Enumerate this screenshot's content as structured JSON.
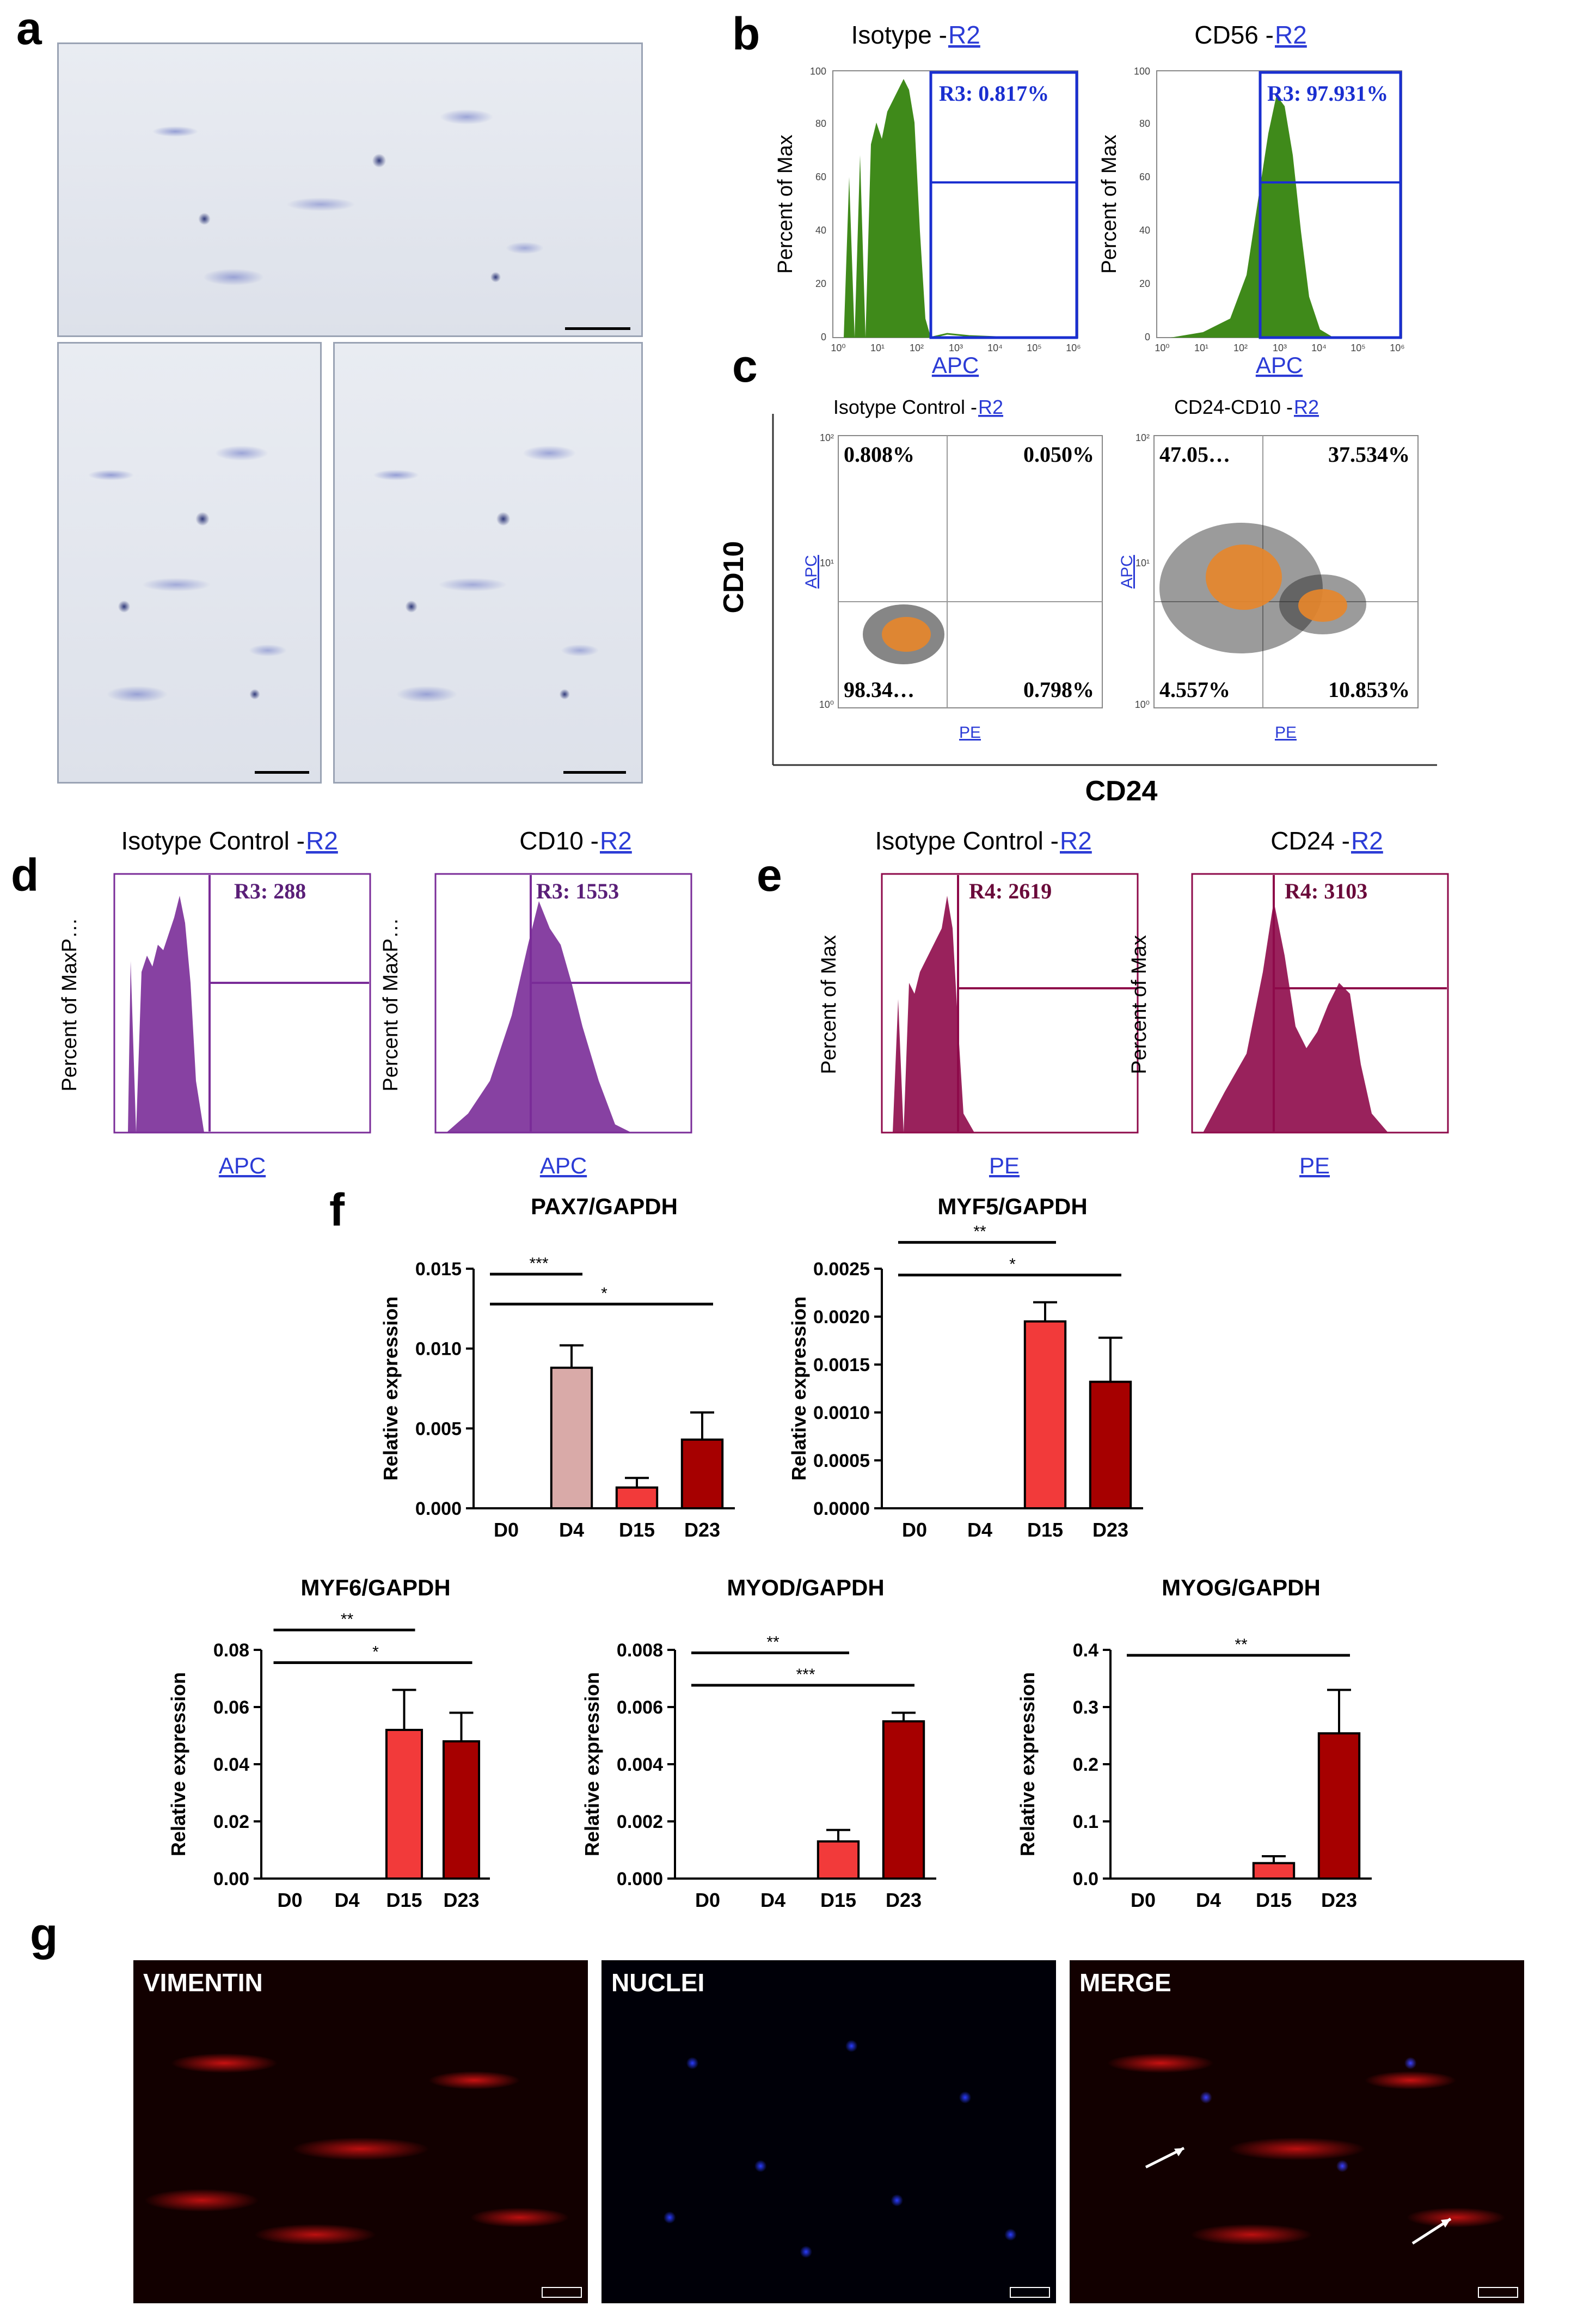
{
  "panel_labels": {
    "a": "a",
    "b": "b",
    "c": "c",
    "d": "d",
    "e": "e",
    "f": "f",
    "g": "g"
  },
  "colors": {
    "green": "#3f8a1a",
    "blue_gate": "#1a2fd0",
    "purple": "#7a2c98",
    "maroon": "#8e0a4a",
    "bar_pink": "#d9aaa8",
    "bar_red": "#f23a3a",
    "bar_darkred": "#a60000"
  },
  "panel_b": {
    "plots": [
      {
        "title_prefix": "Isotype - ",
        "title_link": "R2",
        "gate": "R3: 0.817%"
      },
      {
        "title_prefix": "CD56 - ",
        "title_link": "R2",
        "gate": "R3: 97.931%"
      }
    ],
    "ylabel": "Percent of Max",
    "xlabel": "APC",
    "yticks": [
      "0",
      "20",
      "40",
      "60",
      "80",
      "100"
    ],
    "xticks": [
      "10⁰",
      "10¹",
      "10²",
      "10³",
      "10⁴",
      "10⁵",
      "10⁶"
    ]
  },
  "panel_c": {
    "plots": [
      {
        "title_prefix": "Isotype Control - ",
        "title_link": "R2",
        "quadrants": [
          "0.808%",
          "0.050%",
          "98.34…",
          "0.798%"
        ]
      },
      {
        "title_prefix": "CD24-CD10 - ",
        "title_link": "R2",
        "quadrants": [
          "47.05…",
          "37.534%",
          "4.557%",
          "10.853%"
        ]
      }
    ],
    "inner_ylabel": "APC",
    "inner_xlabel": "PE",
    "outer_ylabel": "CD10",
    "outer_xlabel": "CD24",
    "yticks": [
      "10⁰",
      "10¹",
      "10²"
    ]
  },
  "panel_d": {
    "plots": [
      {
        "title_prefix": "Isotype Control - ",
        "title_link": "R2",
        "gate": "R3: 288"
      },
      {
        "title_prefix": "CD10 - ",
        "title_link": "R2",
        "gate": "R3: 1553"
      }
    ],
    "ylabel": "Percent of MaxP…",
    "xlabel": "APC"
  },
  "panel_e": {
    "plots": [
      {
        "title_prefix": "Isotype Control - ",
        "title_link": "R2",
        "gate": "R4: 2619"
      },
      {
        "title_prefix": "CD24 - ",
        "title_link": "R2",
        "gate": "R4: 3103"
      }
    ],
    "ylabel": "Percent of Max",
    "xlabel": "PE"
  },
  "panel_g": {
    "labels": [
      "VIMENTIN",
      "NUCLEI",
      "MERGE"
    ]
  },
  "chart_data": [
    {
      "type": "bar",
      "title": "PAX7/GAPDH",
      "ylabel": "Relative expression",
      "categories": [
        "D0",
        "D4",
        "D15",
        "D23"
      ],
      "values": [
        0,
        0.0088,
        0.0013,
        0.0043
      ],
      "errors": [
        0,
        0.0014,
        0.0006,
        0.0017
      ],
      "ylim": [
        0,
        0.015
      ],
      "yticks": [
        "0.000",
        "0.005",
        "0.010",
        "0.015"
      ],
      "significance": [
        {
          "from": "D0",
          "to": "D4",
          "label": "***"
        },
        {
          "from": "D0",
          "to": "D23",
          "label": "*"
        }
      ]
    },
    {
      "type": "bar",
      "title": "MYF5/GAPDH",
      "ylabel": "Relative expression",
      "categories": [
        "D0",
        "D4",
        "D15",
        "D23"
      ],
      "values": [
        0,
        0,
        0.00195,
        0.00132
      ],
      "errors": [
        0,
        0,
        0.0002,
        0.00046
      ],
      "ylim": [
        0,
        0.0025
      ],
      "yticks": [
        "0.0000",
        "0.0005",
        "0.0010",
        "0.0015",
        "0.0020",
        "0.0025"
      ],
      "significance": [
        {
          "from": "D0",
          "to": "D15",
          "label": "**"
        },
        {
          "from": "D0",
          "to": "D23",
          "label": "*"
        }
      ]
    },
    {
      "type": "bar",
      "title": "MYF6/GAPDH",
      "ylabel": "Relative expression",
      "categories": [
        "D0",
        "D4",
        "D15",
        "D23"
      ],
      "values": [
        0,
        0,
        0.052,
        0.048
      ],
      "errors": [
        0,
        0,
        0.014,
        0.01
      ],
      "ylim": [
        0,
        0.08
      ],
      "yticks": [
        "0.00",
        "0.02",
        "0.04",
        "0.06",
        "0.08"
      ],
      "significance": [
        {
          "from": "D0",
          "to": "D15",
          "label": "**"
        },
        {
          "from": "D0",
          "to": "D23",
          "label": "*"
        }
      ]
    },
    {
      "type": "bar",
      "title": "MYOD/GAPDH",
      "ylabel": "Relative expression",
      "categories": [
        "D0",
        "D4",
        "D15",
        "D23"
      ],
      "values": [
        0,
        0,
        0.0013,
        0.0055
      ],
      "errors": [
        0,
        0,
        0.0004,
        0.0003
      ],
      "ylim": [
        0,
        0.008
      ],
      "yticks": [
        "0.000",
        "0.002",
        "0.004",
        "0.006",
        "0.008"
      ],
      "significance": [
        {
          "from": "D0",
          "to": "D15",
          "label": "**"
        },
        {
          "from": "D0",
          "to": "D23",
          "label": "***"
        }
      ]
    },
    {
      "type": "bar",
      "title": "MYOG/GAPDH",
      "ylabel": "Relative expression",
      "categories": [
        "D0",
        "D4",
        "D15",
        "D23"
      ],
      "values": [
        0,
        0,
        0.027,
        0.254
      ],
      "errors": [
        0,
        0,
        0.012,
        0.076
      ],
      "ylim": [
        0,
        0.4
      ],
      "yticks": [
        "0.0",
        "0.1",
        "0.2",
        "0.3",
        "0.4"
      ],
      "significance": [
        {
          "from": "D0",
          "to": "D23",
          "label": "**"
        }
      ]
    }
  ]
}
